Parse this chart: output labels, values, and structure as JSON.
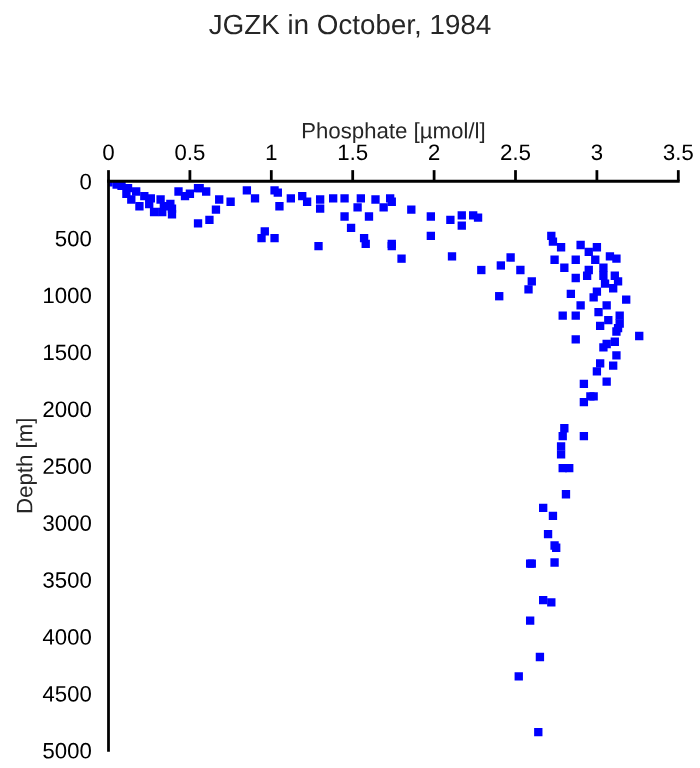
{
  "chart_data": {
    "type": "scatter",
    "title": "JGZK in October, 1984",
    "xlabel": "Phosphate [µmol/l]",
    "ylabel": "Depth [m]",
    "xlim": [
      0,
      3.5
    ],
    "xticks": [
      0,
      0.5,
      1,
      1.5,
      2,
      2.5,
      3,
      3.5
    ],
    "ylim": [
      5000,
      0
    ],
    "yticks": [
      0,
      500,
      1000,
      1500,
      2000,
      2500,
      3000,
      3500,
      4000,
      4500,
      5000
    ],
    "grid": false,
    "marker": "square",
    "series": [
      {
        "color": "#0000ff",
        "x": [
          0,
          0.05,
          0.08,
          0.12,
          0.17,
          0.22,
          0.26,
          0.32,
          0.25,
          0.34,
          0.39,
          0.38,
          0.33,
          0.39,
          0.43,
          0.47,
          0.5,
          0.56,
          0.6,
          0.68,
          0.75,
          0.85,
          0.9,
          1.02,
          1.04,
          1.12,
          1.19,
          1.22,
          1.3,
          1.38,
          1.45,
          1.55,
          1.64,
          1.74,
          0.62,
          0.55,
          0.66,
          0.94,
          0.96,
          1.02,
          1.05,
          1.3,
          1.29,
          1.49,
          1.57,
          1.58,
          1.74,
          1.6,
          1.45,
          1.53,
          1.69,
          0.55,
          0.11,
          0.14,
          0.19,
          0.28,
          1.73,
          1.86,
          1.98,
          1.98,
          1.74,
          1.8,
          2.17,
          2.24,
          2.17,
          2.27,
          2.1,
          2.11,
          2.29,
          2.47,
          2.41,
          2.53,
          2.6,
          2.4,
          2.58,
          2.72,
          2.73,
          2.78,
          2.9,
          2.95,
          3.0,
          2.74,
          2.8,
          2.87,
          2.99,
          3.08,
          3.12,
          2.95,
          3.04,
          3.11,
          3.04,
          2.94,
          2.87,
          3.05,
          3.13,
          2.84,
          3.0,
          3.1,
          2.98,
          2.9,
          3.06,
          3.01,
          3.18,
          3.14,
          3.07,
          3.14,
          3.02,
          3.13,
          3.26,
          3.12,
          2.87,
          2.79,
          3.06,
          2.87,
          3.11,
          3.04,
          3.12,
          3.02,
          3.0,
          2.98,
          3.06,
          3.1,
          2.92,
          2.96,
          2.92,
          2.8,
          2.78,
          2.79,
          2.92,
          2.78,
          2.79,
          2.83,
          2.81,
          2.67,
          2.73,
          2.7,
          2.75,
          2.74,
          2.6,
          2.74,
          2.59,
          2.67,
          2.72,
          2.59,
          2.65,
          2.52,
          2.64
        ],
        "values": [
          10,
          30,
          40,
          60,
          90,
          130,
          150,
          160,
          200,
          220,
          240,
          200,
          270,
          290,
          90,
          130,
          110,
          60,
          90,
          160,
          180,
          80,
          150,
          80,
          100,
          150,
          130,
          180,
          160,
          150,
          150,
          150,
          160,
          180,
          340,
          370,
          250,
          500,
          440,
          500,
          220,
          240,
          570,
          410,
          500,
          550,
          570,
          310,
          310,
          230,
          230,
          60,
          110,
          160,
          220,
          270,
          150,
          250,
          310,
          480,
          550,
          680,
          300,
          300,
          390,
          320,
          340,
          660,
          780,
          670,
          740,
          780,
          880,
          1010,
          950,
          480,
          530,
          580,
          560,
          620,
          580,
          690,
          760,
          690,
          690,
          660,
          680,
          780,
          760,
          830,
          830,
          830,
          850,
          900,
          880,
          990,
          970,
          940,
          1020,
          1090,
          1090,
          1150,
          1040,
          1180,
          1220,
          1250,
          1270,
          1290,
          1360,
          1320,
          1180,
          1180,
          1430,
          1390,
          1410,
          1460,
          1530,
          1600,
          1670,
          1890,
          1760,
          1620,
          1780,
          1890,
          1940,
          2170,
          2330,
          2240,
          2240,
          2400,
          2520,
          2520,
          2750,
          2870,
          2940,
          3100,
          3220,
          3350,
          3360,
          3200,
          3360,
          3680,
          3700,
          3860,
          4180,
          4350,
          4840
        ]
      }
    ]
  }
}
